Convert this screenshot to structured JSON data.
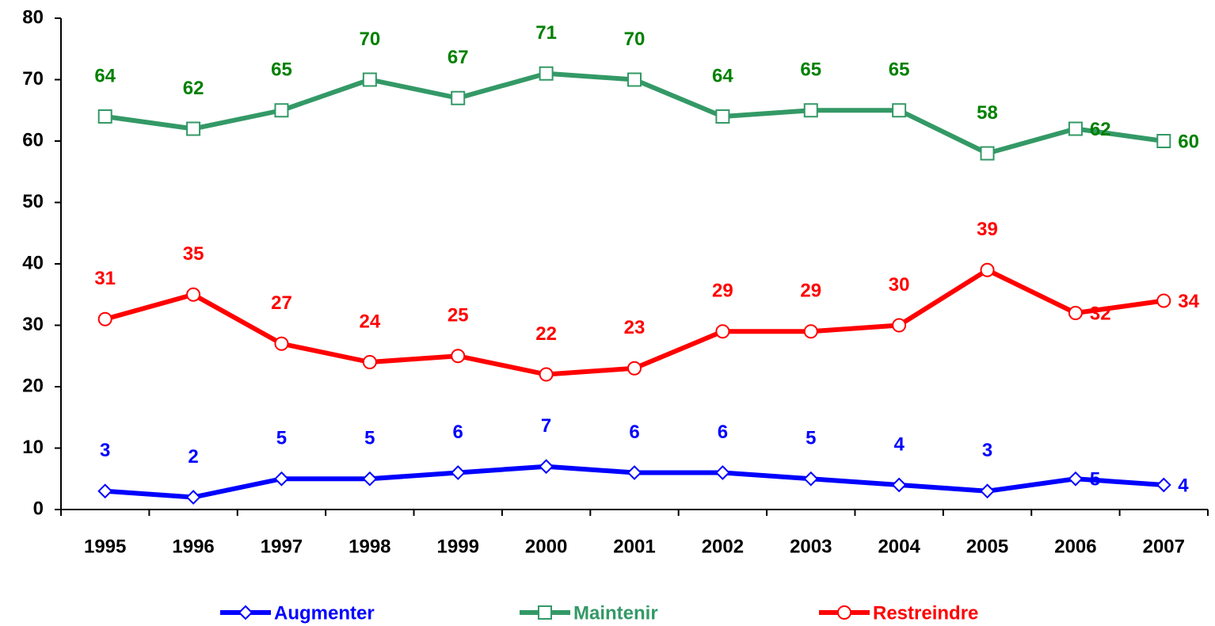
{
  "chart_data": {
    "type": "line",
    "categories": [
      "1995",
      "1996",
      "1997",
      "1998",
      "1999",
      "2000",
      "2001",
      "2002",
      "2003",
      "2004",
      "2005",
      "2006",
      "2007"
    ],
    "series": [
      {
        "name": "Augmenter",
        "color": "#0000ff",
        "label_color": "#0000ff",
        "marker": "diamond",
        "values": [
          3,
          2,
          5,
          5,
          6,
          7,
          6,
          6,
          5,
          4,
          3,
          5,
          4
        ]
      },
      {
        "name": "Maintenir",
        "color": "#339966",
        "label_color": "#008000",
        "marker": "square",
        "values": [
          64,
          62,
          65,
          70,
          67,
          71,
          70,
          64,
          65,
          65,
          58,
          62,
          60
        ]
      },
      {
        "name": "Restreindre",
        "color": "#ff0000",
        "label_color": "#ff0000",
        "marker": "circle",
        "values": [
          31,
          35,
          27,
          24,
          25,
          22,
          23,
          29,
          29,
          30,
          39,
          32,
          34
        ]
      }
    ],
    "ylim": [
      0,
      80
    ],
    "yticks": [
      0,
      10,
      20,
      30,
      40,
      50,
      60,
      70,
      80
    ],
    "grid": false,
    "legend": "bottom"
  }
}
